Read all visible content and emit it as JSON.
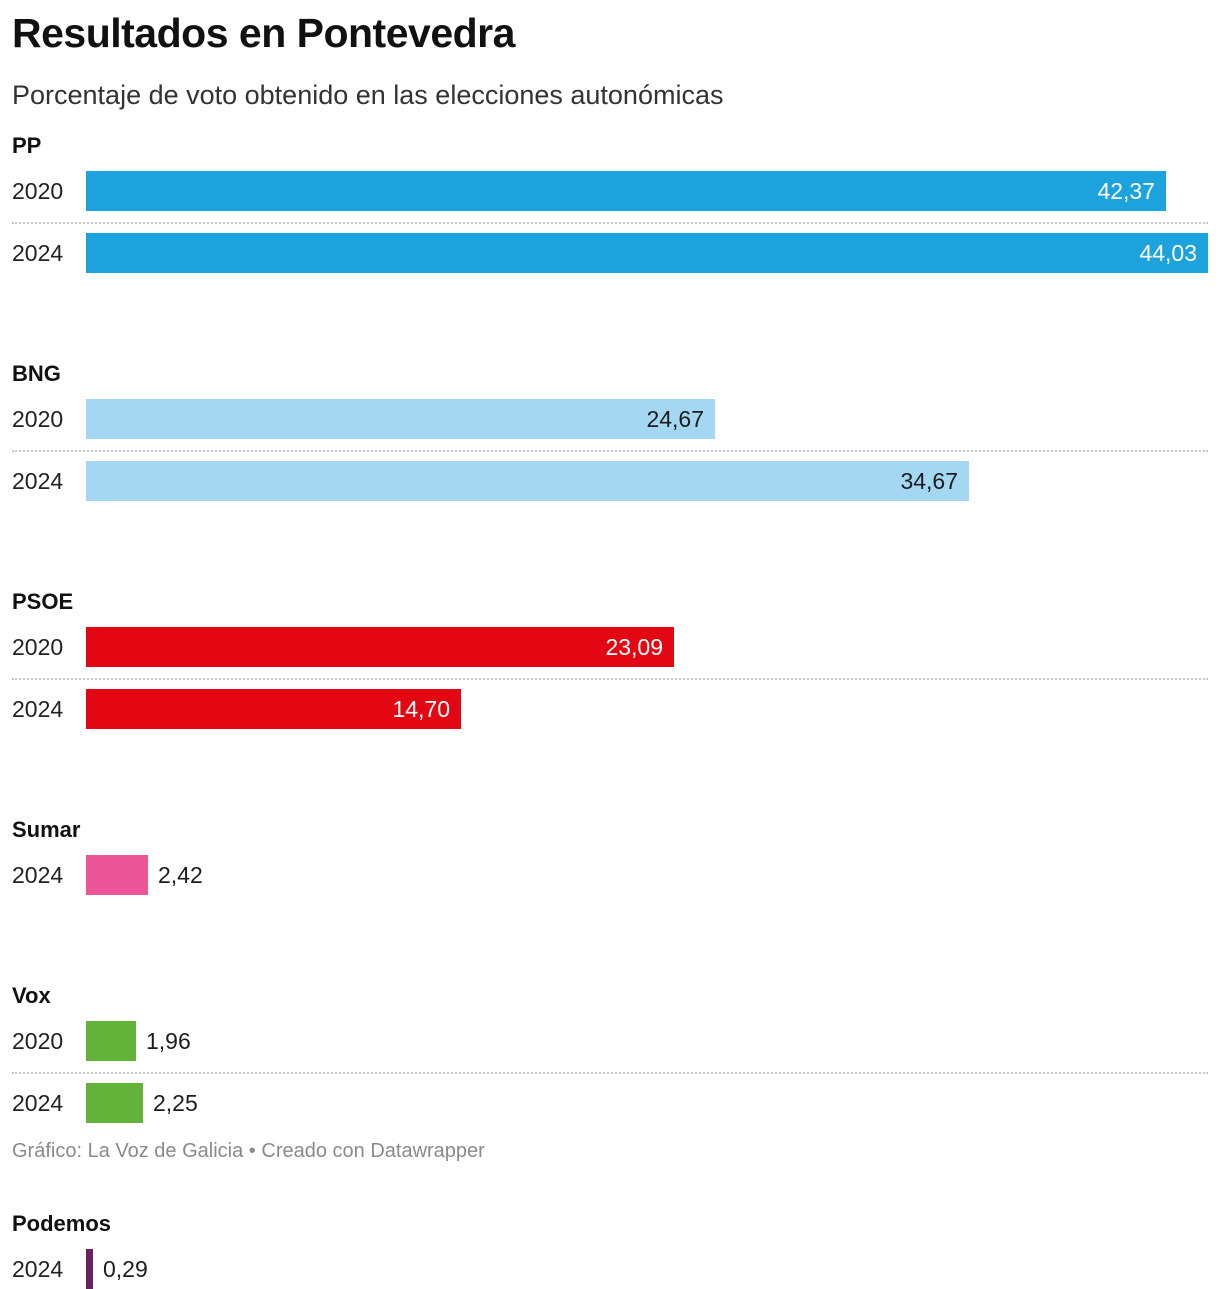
{
  "header": {
    "title": "Resultados en Pontevedra",
    "subtitle": "Porcentaje de voto obtenido en las elecciones autonómicas"
  },
  "footer": {
    "source": "Gráfico: La Voz de Galicia",
    "separator": "•",
    "credit": "Creado con Datawrapper"
  },
  "chart_data": {
    "type": "bar",
    "orientation": "horizontal",
    "title": "Resultados en Pontevedra",
    "subtitle": "Porcentaje de voto obtenido en las elecciones autonómicas",
    "unit": "%",
    "xlim": [
      0,
      44.03
    ],
    "groups": [
      {
        "name": "PP",
        "color": "#1ca3dd",
        "label_color": "#ffffff",
        "rows": [
          {
            "year": "2020",
            "value": 42.37,
            "label": "42,37"
          },
          {
            "year": "2024",
            "value": 44.03,
            "label": "44,03"
          }
        ]
      },
      {
        "name": "BNG",
        "color": "#a3d7f2",
        "label_color": "#1d1d1d",
        "rows": [
          {
            "year": "2020",
            "value": 24.67,
            "label": "24,67"
          },
          {
            "year": "2024",
            "value": 34.67,
            "label": "34,67"
          }
        ]
      },
      {
        "name": "PSOE",
        "color": "#e30613",
        "label_color": "#ffffff",
        "rows": [
          {
            "year": "2020",
            "value": 23.09,
            "label": "23,09"
          },
          {
            "year": "2024",
            "value": 14.7,
            "label": "14,70"
          }
        ]
      },
      {
        "name": "Sumar",
        "color": "#ec5598",
        "label_color": "#1d1d1d",
        "rows": [
          {
            "year": "2024",
            "value": 2.42,
            "label": "2,42"
          }
        ]
      },
      {
        "name": "Vox",
        "color": "#63b33b",
        "label_color": "#1d1d1d",
        "rows": [
          {
            "year": "2020",
            "value": 1.96,
            "label": "1,96"
          },
          {
            "year": "2024",
            "value": 2.25,
            "label": "2,25"
          }
        ]
      },
      {
        "name": "Podemos",
        "color": "#6b2160",
        "label_color": "#1d1d1d",
        "rows": [
          {
            "year": "2024",
            "value": 0.29,
            "label": "0,29"
          }
        ]
      }
    ]
  }
}
